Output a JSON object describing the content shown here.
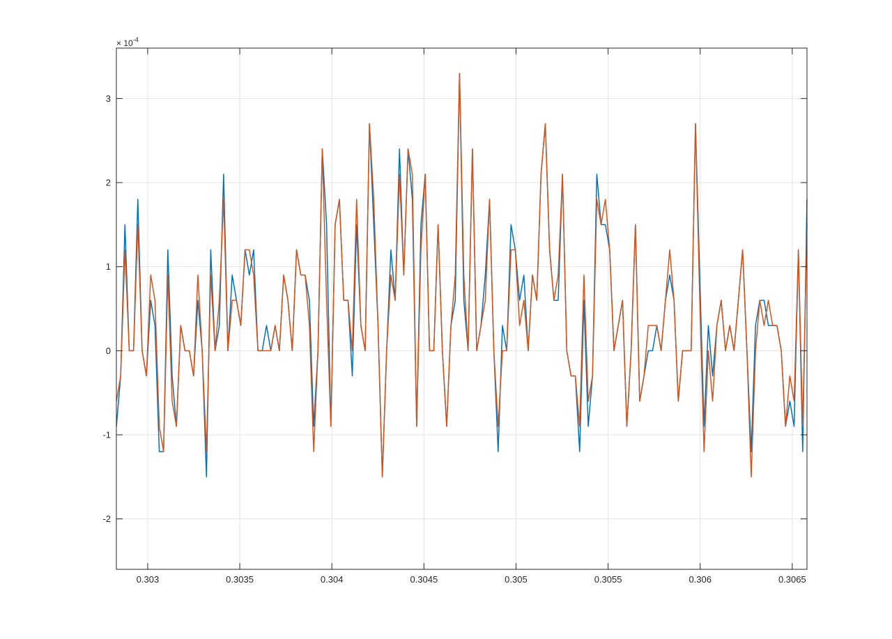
{
  "chart_data": {
    "type": "line",
    "title": "",
    "xlabel": "",
    "ylabel": "",
    "xlim": [
      0.30283,
      0.30658
    ],
    "ylim": [
      -2.6,
      3.6
    ],
    "y_exponent": "× 10",
    "y_exponent_power": "-4",
    "grid": true,
    "x_ticks": [
      {
        "value": 0.303,
        "label": "0.303"
      },
      {
        "value": 0.3035,
        "label": "0.3035"
      },
      {
        "value": 0.304,
        "label": "0.304"
      },
      {
        "value": 0.3045,
        "label": "0.3045"
      },
      {
        "value": 0.305,
        "label": "0.305"
      },
      {
        "value": 0.3055,
        "label": "0.3055"
      },
      {
        "value": 0.306,
        "label": "0.306"
      },
      {
        "value": 0.3065,
        "label": "0.3065"
      }
    ],
    "y_ticks": [
      {
        "value": 3,
        "label": "3"
      },
      {
        "value": 2,
        "label": "2"
      },
      {
        "value": 1,
        "label": "1"
      },
      {
        "value": 0,
        "label": "0"
      },
      {
        "value": -1,
        "label": "-1"
      },
      {
        "value": -2,
        "label": "-2"
      }
    ],
    "series": [
      {
        "color": "#0072bd",
        "values": [
          -0.9,
          -0.3,
          1.5,
          0,
          0,
          1.8,
          0,
          -0.3,
          0.6,
          0.3,
          -1.2,
          -1.2,
          1.2,
          -0.3,
          -0.9,
          0.3,
          0,
          0,
          -0.3,
          0.6,
          0,
          -1.5,
          1.2,
          0,
          0.3,
          2.1,
          0,
          0.9,
          0.6,
          0.3,
          1.2,
          0.9,
          1.2,
          0,
          0,
          0.3,
          0,
          0.3,
          0,
          0.9,
          0.6,
          0,
          1.2,
          0.9,
          0.9,
          0.6,
          -0.9,
          0,
          2.4,
          1.5,
          -0.9,
          1.5,
          1.8,
          0.6,
          0.6,
          -0.3,
          1.5,
          0.3,
          0,
          2.7,
          1.5,
          0.3,
          -1.5,
          0,
          1.2,
          0.6,
          2.4,
          0.9,
          2.4,
          1.8,
          -0.9,
          1.5,
          2.1,
          0,
          0,
          1.5,
          0,
          -0.9,
          0.3,
          0.6,
          3.3,
          0.6,
          0,
          2.4,
          0,
          0.3,
          0.9,
          1.8,
          0,
          -1.2,
          0.3,
          0,
          1.5,
          1.2,
          0.6,
          0.9,
          0,
          0.9,
          0.6,
          2.1,
          2.7,
          1.2,
          0.6,
          0.6,
          2.1,
          0,
          -0.3,
          -0.3,
          -1.2,
          0.6,
          -0.9,
          -0.3,
          2.1,
          1.5,
          1.5,
          1.2,
          0,
          0.3,
          0.6,
          -0.9,
          0,
          1.5,
          -0.6,
          -0.3,
          0,
          0,
          0.3,
          0,
          0.6,
          0.9,
          0.6,
          -0.6,
          0,
          0,
          0,
          2.7,
          0.9,
          -0.9,
          0.3,
          -0.3,
          0.3,
          0.6,
          0,
          0.3,
          0,
          0.6,
          1.2,
          0,
          -1.2,
          0.3,
          0.6,
          0.6,
          0.3,
          0.3,
          0.3,
          0,
          -0.9,
          -0.6,
          -0.9,
          1.2,
          -1.2,
          1.8
        ]
      },
      {
        "color": "#d95319",
        "values": [
          -0.6,
          -0.3,
          1.2,
          0,
          0,
          1.5,
          0,
          -0.3,
          0.9,
          0.6,
          -0.9,
          -1.2,
          0.9,
          -0.6,
          -0.9,
          0.3,
          0,
          0,
          -0.3,
          0.9,
          0,
          -1.2,
          0.9,
          0,
          0.6,
          1.8,
          0,
          0.6,
          0.6,
          0.3,
          1.2,
          1.2,
          0.9,
          0,
          0,
          0,
          0,
          0.3,
          0,
          0.9,
          0.6,
          0,
          1.2,
          0.9,
          0.9,
          0.3,
          -1.2,
          0,
          2.4,
          0.6,
          -0.9,
          1.5,
          1.8,
          0.6,
          0.6,
          0,
          1.8,
          0.3,
          0,
          2.7,
          1.8,
          0.3,
          -1.5,
          0,
          0.9,
          0.6,
          2.1,
          0.9,
          2.4,
          2.1,
          -0.9,
          1.2,
          2.1,
          0,
          0,
          1.5,
          0,
          -0.9,
          0.3,
          0.9,
          3.3,
          0.9,
          0,
          2.4,
          0,
          0.3,
          0.6,
          1.8,
          0,
          -0.9,
          0,
          0,
          1.2,
          1.2,
          0.3,
          0.6,
          0,
          0.9,
          0.6,
          2.1,
          2.7,
          1.2,
          0.6,
          0.9,
          2.1,
          0,
          -0.3,
          -0.3,
          -0.9,
          0.9,
          -0.6,
          -0.3,
          1.8,
          1.5,
          1.8,
          1.2,
          0,
          0.3,
          0.6,
          -0.9,
          0,
          1.5,
          -0.6,
          -0.3,
          0.3,
          0.3,
          0.3,
          0,
          0.6,
          1.2,
          0.6,
          -0.6,
          0,
          0,
          0,
          2.7,
          0.6,
          -1.2,
          0,
          -0.6,
          0.3,
          0.6,
          0,
          0.3,
          0,
          0.6,
          1.2,
          0,
          -1.5,
          0,
          0.6,
          0.3,
          0.6,
          0.3,
          0.3,
          0,
          -0.9,
          -0.3,
          -0.6,
          1.2,
          -0.9,
          1.5
        ]
      }
    ]
  }
}
